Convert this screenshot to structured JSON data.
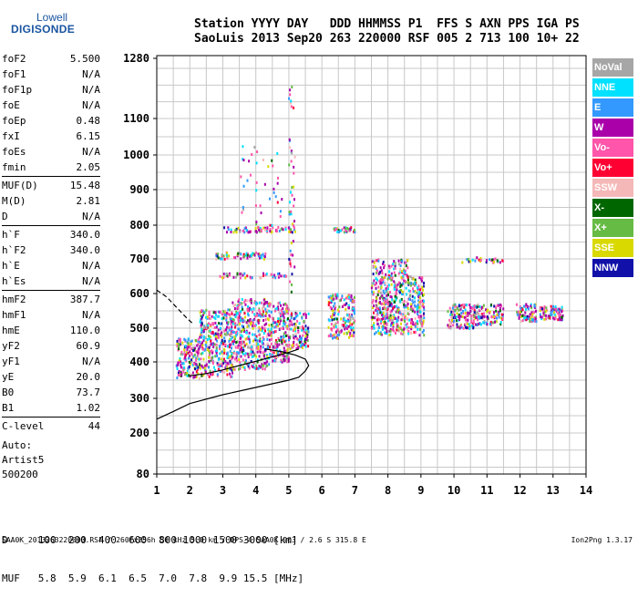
{
  "logo": {
    "top": "Lowell",
    "bottom": "DIGISONDE"
  },
  "header": {
    "line1": "Station YYYY DAY   DDD HHMMSS P1  FFS S AXN PPS IGA PS",
    "line2": "SaoLuis 2013 Sep20 263 220000 RSF 005 2 713 100 10+ 22"
  },
  "params": [
    {
      "k": "foF2",
      "v": "5.500"
    },
    {
      "k": "foF1",
      "v": "N/A"
    },
    {
      "k": "foF1p",
      "v": "N/A"
    },
    {
      "k": "foE",
      "v": "N/A"
    },
    {
      "k": "foEp",
      "v": "0.48"
    },
    {
      "k": "fxI",
      "v": "6.15"
    },
    {
      "k": "foEs",
      "v": "N/A"
    },
    {
      "k": "fmin",
      "v": "2.05"
    },
    {
      "k": "MUF(D)",
      "v": "15.48"
    },
    {
      "k": "M(D)",
      "v": "2.81"
    },
    {
      "k": "D",
      "v": "N/A"
    },
    {
      "k": "h`F",
      "v": "340.0"
    },
    {
      "k": "h`F2",
      "v": "340.0"
    },
    {
      "k": "h`E",
      "v": "N/A"
    },
    {
      "k": "h`Es",
      "v": "N/A"
    },
    {
      "k": "hmF2",
      "v": "387.7"
    },
    {
      "k": "hmF1",
      "v": "N/A"
    },
    {
      "k": "hmE",
      "v": "110.0"
    },
    {
      "k": "yF2",
      "v": "60.9"
    },
    {
      "k": "yF1",
      "v": "N/A"
    },
    {
      "k": "yE",
      "v": "20.0"
    },
    {
      "k": "B0",
      "v": "73.7"
    },
    {
      "k": "B1",
      "v": "1.02"
    },
    {
      "k": "C-level",
      "v": "44"
    }
  ],
  "auto": {
    "line1": "Auto:",
    "line2": "Artist5",
    "line3": "500200"
  },
  "legend": [
    {
      "label": "NoVal",
      "color": "#a6a6a6"
    },
    {
      "label": "NNE",
      "color": "#00e0ff"
    },
    {
      "label": "E",
      "color": "#3399ff"
    },
    {
      "label": "W",
      "color": "#aa00aa"
    },
    {
      "label": "Vo-",
      "color": "#ff55aa"
    },
    {
      "label": "Vo+",
      "color": "#ff0033"
    },
    {
      "label": "SSW",
      "color": "#f5b8b8"
    },
    {
      "label": "X-",
      "color": "#006600"
    },
    {
      "label": "X+",
      "color": "#66bb44"
    },
    {
      "label": "SSE",
      "color": "#d9d900"
    },
    {
      "label": "NNW",
      "color": "#1111aa"
    }
  ],
  "muf": {
    "line1": "D     100  200  400  600  800 1000 1500 3000 [km]",
    "line2": "MUF   5.8  5.9  6.1  6.5  7.0  7.8  9.9 15.5 [MHz]"
  },
  "footer": {
    "left": "SAA0K_2013263220000.RSF / 260fx256h 50 kHz 5.0 km / DPS-4 SAA0K 903 / 2.6 S 315.8 E",
    "right": "Ion2Png 1.3.17"
  },
  "chart_data": {
    "type": "scatter",
    "xlim": [
      1,
      14
    ],
    "ylim": [
      80,
      1280
    ],
    "x_ticks": [
      1,
      2,
      3,
      4,
      5,
      6,
      7,
      8,
      9,
      10,
      11,
      12,
      13,
      14
    ],
    "y_ticks": [
      80,
      200,
      300,
      400,
      500,
      600,
      700,
      800,
      900,
      1000,
      1100,
      1280
    ],
    "grid": true,
    "clusters": [
      {
        "xmin": 1.6,
        "xmax": 2.3,
        "ymin": 355,
        "ymax": 470,
        "n": 160
      },
      {
        "xmin": 2.3,
        "xmax": 3.3,
        "ymin": 360,
        "ymax": 555,
        "n": 340
      },
      {
        "xmin": 3.3,
        "xmax": 4.4,
        "ymin": 380,
        "ymax": 585,
        "n": 380
      },
      {
        "xmin": 4.4,
        "xmax": 5.0,
        "ymin": 400,
        "ymax": 575,
        "n": 200
      },
      {
        "xmin": 5.0,
        "xmax": 5.6,
        "ymin": 440,
        "ymax": 545,
        "n": 120
      },
      {
        "xmin": 6.2,
        "xmax": 7.0,
        "ymin": 470,
        "ymax": 600,
        "n": 180
      },
      {
        "xmin": 7.5,
        "xmax": 8.6,
        "ymin": 480,
        "ymax": 700,
        "n": 420
      },
      {
        "xmin": 8.6,
        "xmax": 9.1,
        "ymin": 480,
        "ymax": 650,
        "n": 160
      },
      {
        "xmin": 9.8,
        "xmax": 10.6,
        "ymin": 500,
        "ymax": 570,
        "n": 120
      },
      {
        "xmin": 10.6,
        "xmax": 11.5,
        "ymin": 510,
        "ymax": 570,
        "n": 110
      },
      {
        "xmin": 11.9,
        "xmax": 12.5,
        "ymin": 520,
        "ymax": 570,
        "n": 80
      },
      {
        "xmin": 12.6,
        "xmax": 13.3,
        "ymin": 525,
        "ymax": 565,
        "n": 80
      },
      {
        "xmin": 2.8,
        "xmax": 4.3,
        "ymin": 700,
        "ymax": 720,
        "n": 60
      },
      {
        "xmin": 3.0,
        "xmax": 5.2,
        "ymin": 780,
        "ymax": 795,
        "n": 70
      },
      {
        "xmin": 2.9,
        "xmax": 5.0,
        "ymin": 645,
        "ymax": 660,
        "n": 50
      },
      {
        "xmin": 6.3,
        "xmax": 7.0,
        "ymin": 778,
        "ymax": 795,
        "n": 30
      },
      {
        "xmin": 10.2,
        "xmax": 11.5,
        "ymin": 690,
        "ymax": 705,
        "n": 30
      },
      {
        "xmin": 5.0,
        "xmax": 5.2,
        "ymin": 600,
        "ymax": 1200,
        "n": 50
      },
      {
        "xmin": 3.5,
        "xmax": 4.8,
        "ymin": 800,
        "ymax": 1050,
        "n": 40
      }
    ],
    "curves": [
      {
        "name": "profile",
        "color": "#000000",
        "points": [
          [
            1,
            240
          ],
          [
            1.5,
            262
          ],
          [
            2,
            285
          ],
          [
            3,
            310
          ],
          [
            4,
            330
          ],
          [
            4.5,
            340
          ],
          [
            5,
            350
          ],
          [
            5.3,
            358
          ],
          [
            5.5,
            375
          ],
          [
            5.6,
            390
          ],
          [
            5.5,
            408
          ],
          [
            5.2,
            420
          ],
          [
            4.8,
            430
          ],
          [
            4.3,
            438
          ]
        ]
      },
      {
        "name": "trace",
        "color": "#000000",
        "points": [
          [
            2.0,
            362
          ],
          [
            2.5,
            368
          ],
          [
            3,
            378
          ],
          [
            3.5,
            390
          ],
          [
            4,
            402
          ],
          [
            4.5,
            415
          ],
          [
            5.0,
            428
          ],
          [
            5.3,
            438
          ]
        ]
      },
      {
        "name": "dashed",
        "color": "#000000",
        "dashed": true,
        "points": [
          [
            1.0,
            610
          ],
          [
            1.3,
            590
          ],
          [
            1.6,
            560
          ],
          [
            1.9,
            530
          ],
          [
            2.1,
            512
          ]
        ]
      }
    ]
  }
}
